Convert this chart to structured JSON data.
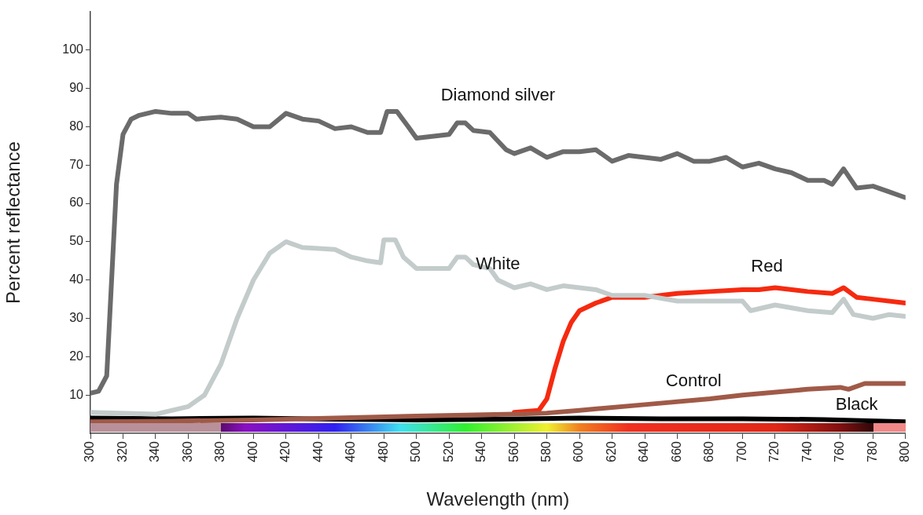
{
  "chart_data": {
    "type": "line",
    "xlabel": "Wavelength (nm)",
    "ylabel": "Percent reflectance",
    "xlim": [
      300,
      800
    ],
    "xticks": [
      300,
      320,
      340,
      360,
      380,
      400,
      420,
      440,
      460,
      480,
      500,
      520,
      540,
      560,
      580,
      600,
      620,
      640,
      660,
      680,
      700,
      720,
      740,
      760,
      780,
      800
    ],
    "ylim": [
      0,
      110
    ],
    "yticks": [
      10,
      20,
      30,
      40,
      50,
      60,
      70,
      80,
      90,
      100
    ],
    "grid": false,
    "legend": false,
    "marker": "none",
    "line_style": "solid",
    "series": [
      {
        "name": "Diamond silver",
        "color": "#6b6b6b",
        "x": [
          300,
          305,
          310,
          313,
          316,
          320,
          325,
          330,
          340,
          350,
          360,
          365,
          380,
          390,
          400,
          410,
          420,
          430,
          440,
          450,
          460,
          470,
          478,
          482,
          488,
          495,
          500,
          520,
          525,
          530,
          535,
          545,
          555,
          560,
          570,
          580,
          590,
          600,
          610,
          620,
          630,
          640,
          650,
          660,
          670,
          680,
          690,
          700,
          710,
          720,
          730,
          740,
          750,
          755,
          762,
          770,
          780,
          790,
          800
        ],
        "values": [
          10.5,
          11,
          15,
          40,
          65,
          78,
          82,
          83,
          84,
          83.5,
          83.5,
          82,
          82.5,
          82,
          80,
          80,
          83.5,
          82,
          81.5,
          79.5,
          80,
          78.5,
          78.5,
          84,
          84,
          80,
          77,
          78,
          81,
          81,
          79,
          78.5,
          74,
          73,
          74.5,
          72,
          73.5,
          73.5,
          74,
          71,
          72.5,
          72,
          71.5,
          73,
          71,
          71,
          72,
          69.5,
          70.5,
          69,
          68,
          66,
          66,
          65,
          69,
          64,
          64.5,
          63,
          61.5
        ]
      },
      {
        "name": "White",
        "color": "#c3cbcb",
        "x": [
          300,
          340,
          360,
          370,
          380,
          390,
          400,
          410,
          420,
          430,
          450,
          460,
          470,
          478,
          480,
          487,
          492,
          500,
          520,
          525,
          530,
          535,
          545,
          550,
          560,
          570,
          580,
          590,
          600,
          610,
          620,
          640,
          660,
          680,
          700,
          705,
          720,
          740,
          755,
          762,
          768,
          780,
          790,
          800
        ],
        "values": [
          5.5,
          5,
          7,
          10,
          18,
          30,
          40,
          47,
          50,
          48.5,
          48,
          46,
          45,
          44.5,
          50.5,
          50.5,
          46,
          43,
          43,
          46,
          46,
          44,
          43,
          40,
          38,
          39,
          37.5,
          38.5,
          38,
          37.5,
          36,
          36,
          34.5,
          34.5,
          34.5,
          32,
          33.5,
          32,
          31.5,
          35,
          31,
          30,
          31,
          30.5
        ]
      },
      {
        "name": "Control",
        "color": "#a05a48",
        "x": [
          300,
          350,
          400,
          450,
          500,
          560,
          580,
          600,
          640,
          680,
          700,
          740,
          760,
          765,
          775,
          800
        ],
        "values": [
          3,
          3.2,
          3.5,
          4,
          4.5,
          5,
          5.3,
          6,
          7.5,
          9,
          10,
          11.5,
          12,
          11.5,
          13,
          13
        ]
      },
      {
        "name": "Red",
        "color": "#f52a10",
        "x": [
          560,
          575,
          580,
          585,
          590,
          595,
          600,
          610,
          620,
          640,
          660,
          680,
          700,
          710,
          720,
          740,
          755,
          762,
          770,
          780,
          800
        ],
        "values": [
          5.5,
          6,
          9,
          17,
          24,
          29,
          32,
          34,
          35.5,
          35.5,
          36.5,
          37,
          37.5,
          37.5,
          38,
          37,
          36.5,
          38,
          35.5,
          35,
          34
        ]
      },
      {
        "name": "Black",
        "color": "#000000",
        "x": [
          300,
          350,
          400,
          450,
          500,
          550,
          600,
          650,
          700,
          750,
          800
        ],
        "values": [
          4,
          3.8,
          4,
          3.7,
          3.5,
          3.7,
          4,
          3.8,
          3.8,
          3.6,
          3
        ]
      }
    ]
  }
}
